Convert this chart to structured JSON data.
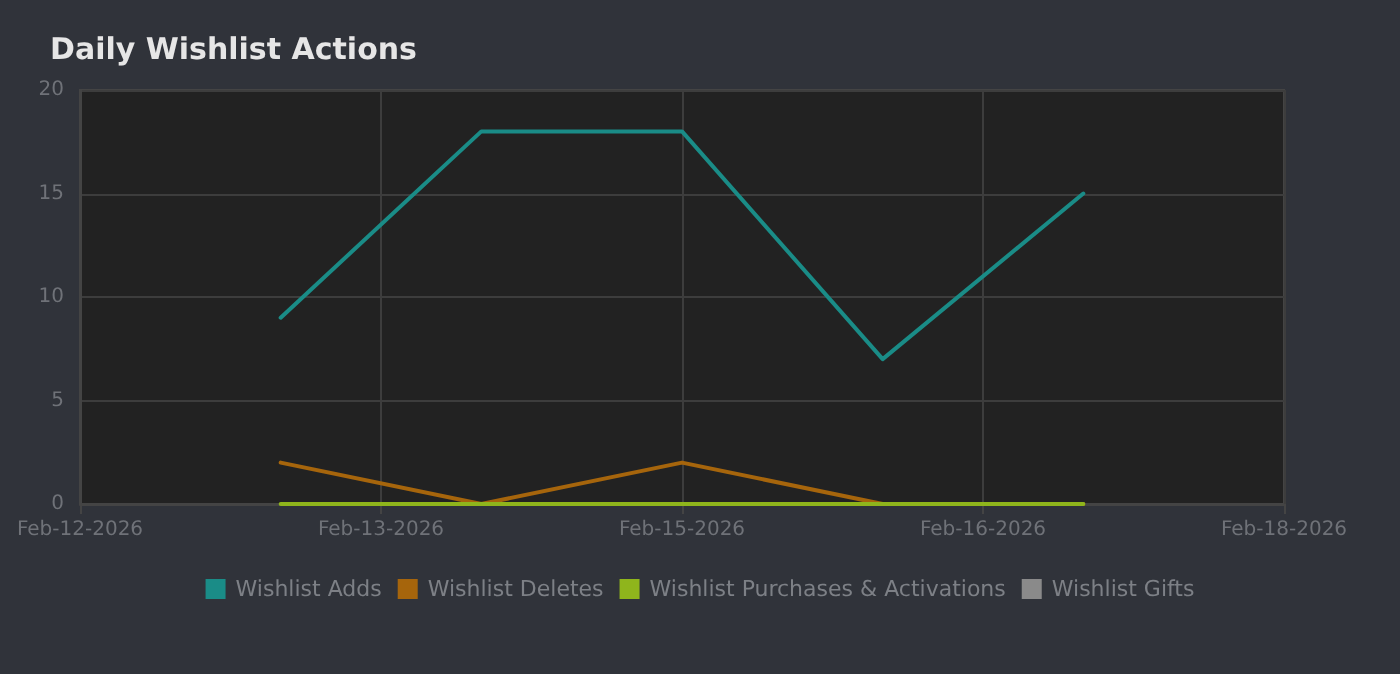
{
  "chart_data": {
    "type": "line",
    "title": "Daily Wishlist Actions",
    "x": [
      "2026-02-13",
      "2026-02-14",
      "2026-02-15",
      "2026-02-16",
      "2026-02-17"
    ],
    "series": [
      {
        "name": "Wishlist Adds",
        "color": "#1a8c87",
        "values": [
          9,
          18,
          18,
          7,
          15
        ]
      },
      {
        "name": "Wishlist Deletes",
        "color": "#a6650c",
        "values": [
          2,
          0,
          2,
          0,
          0
        ]
      },
      {
        "name": "Wishlist Purchases & Activations",
        "color": "#8fb51c",
        "values": [
          0,
          0,
          0,
          0,
          0
        ]
      },
      {
        "name": "Wishlist Gifts",
        "color": "#8a8a8a",
        "values": [
          null,
          null,
          null,
          null,
          null
        ]
      }
    ],
    "xlim": [
      "2026-02-12",
      "2026-02-18"
    ],
    "xticks": [
      {
        "value": "2026-02-12",
        "label": "Feb-12-2026"
      },
      {
        "value": "2026-02-13T12:00",
        "label": "Feb-13-2026"
      },
      {
        "value": "2026-02-15",
        "label": "Feb-15-2026"
      },
      {
        "value": "2026-02-16T12:00",
        "label": "Feb-16-2026"
      },
      {
        "value": "2026-02-18",
        "label": "Feb-18-2026"
      }
    ],
    "ylim": [
      0,
      20
    ],
    "yticks": [
      0,
      5,
      10,
      15,
      20
    ],
    "grid": true,
    "legend": "bottom",
    "marker": "none",
    "line_style": "solid"
  }
}
